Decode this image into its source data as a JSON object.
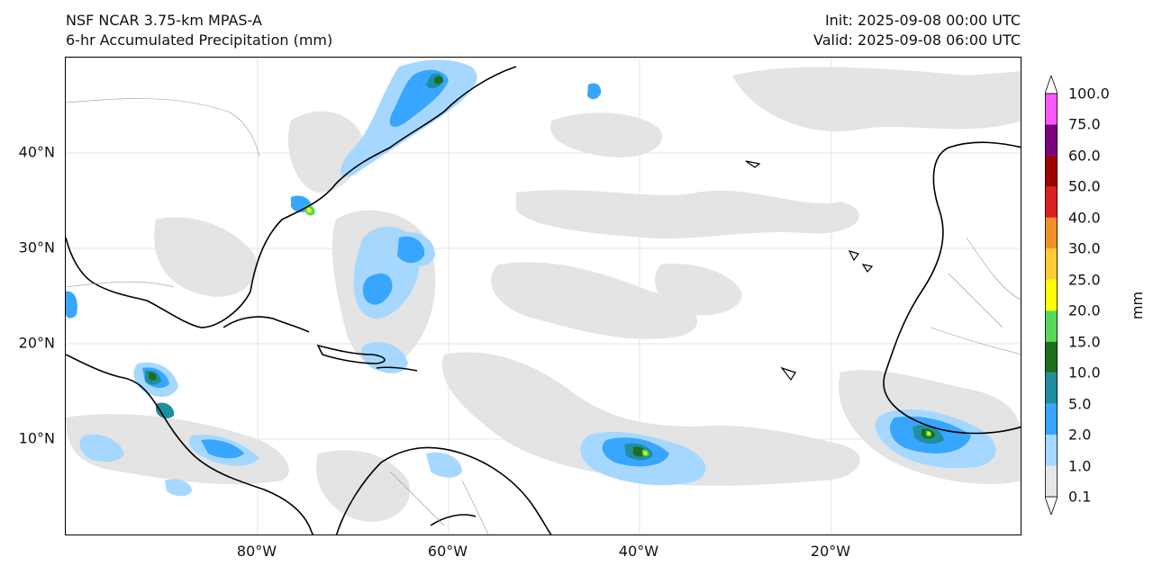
{
  "header": {
    "title_line1": "NSF NCAR 3.75-km MPAS-A",
    "title_line2": "6-hr Accumulated Precipitation (mm)",
    "init": "Init: 2025-09-08 00:00 UTC",
    "valid": "Valid: 2025-09-08 06:00 UTC"
  },
  "axes": {
    "lat_labels": [
      "40°N",
      "30°N",
      "20°N",
      "10°N"
    ],
    "lon_labels": [
      "80°W",
      "60°W",
      "40°W",
      "20°W"
    ]
  },
  "colorbar": {
    "unit": "mm",
    "levels": [
      "0.1",
      "1.0",
      "2.0",
      "5.0",
      "10.0",
      "15.0",
      "20.0",
      "25.0",
      "30.0",
      "40.0",
      "50.0",
      "60.0",
      "75.0",
      "100.0"
    ],
    "colors": [
      "#e6e6e6",
      "#a6d8ff",
      "#38a6ff",
      "#1f8fa0",
      "#1e6e1e",
      "#57d957",
      "#ffff00",
      "#ffcc33",
      "#f2912a",
      "#dd1f1f",
      "#a00000",
      "#7a0080",
      "#ff55ff"
    ]
  },
  "map": {
    "region": "Atlantic basin, 0°–50°N, 100°W–0°",
    "precip_colors": {
      "trace": "#e4e4e4",
      "light": "#a6d8ff",
      "moderate": "#38a6ff",
      "heavy": "#1f8fa0",
      "very_heavy": "#1e6e1e",
      "extreme": "#57d957",
      "core": "#ffff00"
    }
  }
}
